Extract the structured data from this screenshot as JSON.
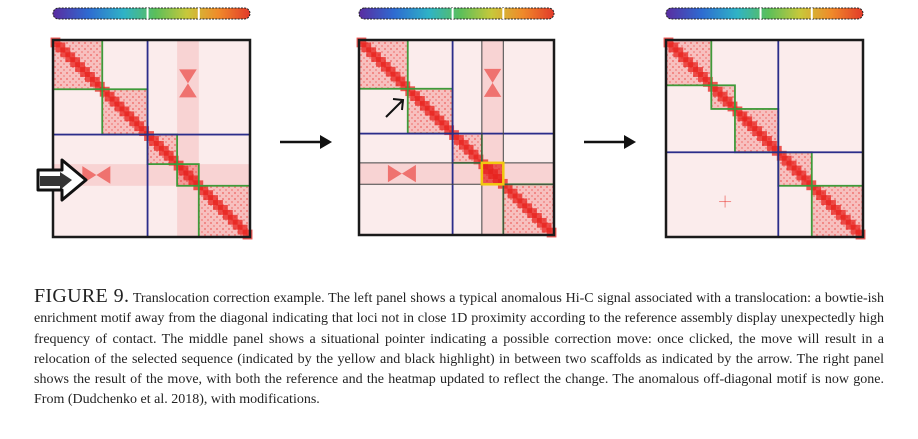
{
  "figure": {
    "label": "FIGURE 9.",
    "caption": "Translocation correction example. The left panel shows a typical anomalous Hi-C signal associated with a translocation: a bowtie-ish enrichment motif away from the diagonal indicating that loci not in close 1D proximity according to the reference assembly display unexpectedly high frequency of contact. The middle panel shows a situational pointer indicating a possible correction move: once clicked, the move will result in a relocation of the selected sequence (indicated by the yellow and black highlight) in between two scaffolds as indicated by the arrow. The right panel shows the result of the move, with both the reference and the heatmap updated to reflect the change. The anomalous off-diagonal motif is now gone. From (Dudchenko et al. 2018), with modifications."
  },
  "panels": [
    {
      "id": "left",
      "annotation": "hollow-arrow-icon"
    },
    {
      "id": "middle",
      "annotation": "pointer-arrow-icon"
    },
    {
      "id": "right",
      "annotation": "none"
    }
  ],
  "colors": {
    "heatmap_high": "#e8231e",
    "heatmap_low": "#fbecec",
    "scaffold_outline": "#2b2d8a",
    "contig_outline": "#3f9a3a",
    "selection_outline": "#f2c80f",
    "frame": "#1a1a1a"
  },
  "icons": [
    "chromosome-ideogram",
    "right-arrow-icon"
  ]
}
